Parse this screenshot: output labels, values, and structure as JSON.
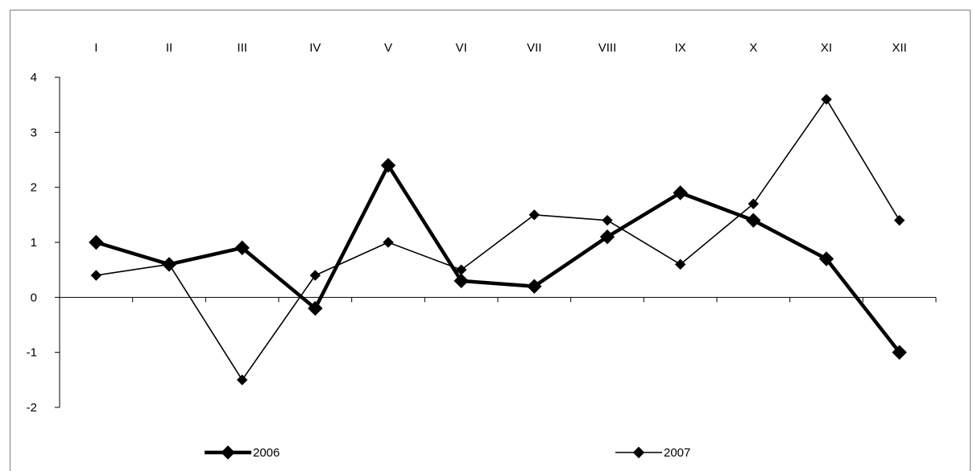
{
  "chart_data": {
    "type": "line",
    "categories": [
      "I",
      "II",
      "III",
      "IV",
      "V",
      "VI",
      "VII",
      "VIII",
      "IX",
      "X",
      "XI",
      "XII"
    ],
    "series": [
      {
        "name": "2006",
        "values": [
          1.0,
          0.6,
          0.9,
          -0.2,
          2.4,
          0.3,
          0.2,
          1.1,
          1.9,
          1.4,
          0.7,
          -1.0
        ],
        "color": "#000000",
        "weight": "thick"
      },
      {
        "name": "2007",
        "values": [
          0.4,
          0.6,
          -1.5,
          0.4,
          1.0,
          0.5,
          1.5,
          1.4,
          0.6,
          1.7,
          3.6,
          1.4
        ],
        "color": "#000000",
        "weight": "thin"
      }
    ],
    "ylim": [
      -2,
      4
    ],
    "yticks": [
      -2,
      -1,
      0,
      1,
      2,
      3,
      4
    ],
    "ytick_labels": [
      "-2",
      "-1",
      "0",
      "1",
      "2",
      "3",
      "4"
    ],
    "title": "",
    "xlabel": "",
    "ylabel": "",
    "grid": false,
    "legend_position": "bottom",
    "category_labels_position": "top"
  }
}
